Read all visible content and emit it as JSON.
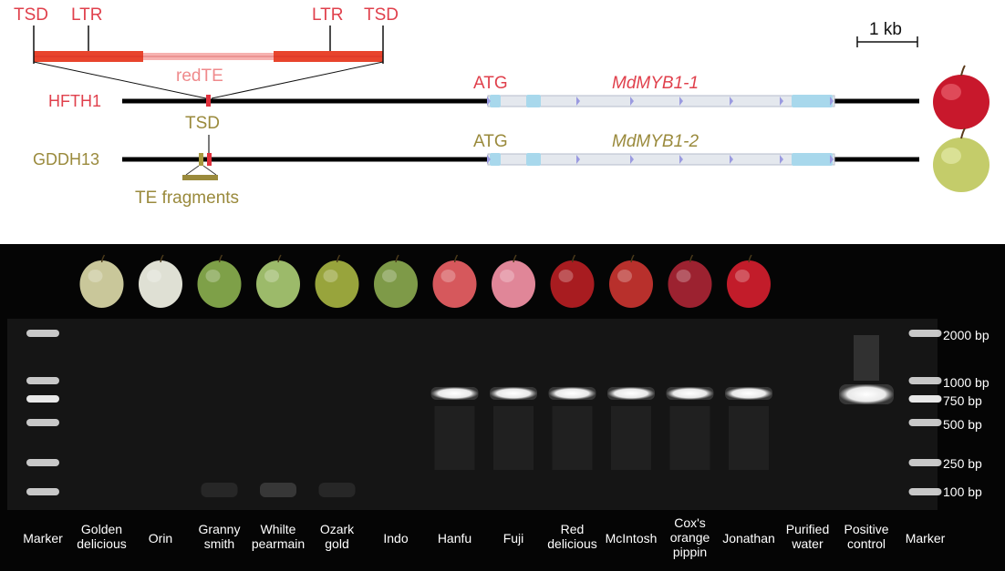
{
  "diagram": {
    "tsd_left": "TSD",
    "ltr_left": "LTR",
    "ltr_right": "LTR",
    "tsd_right": "TSD",
    "scale_label": "1 kb",
    "redte_label": "redTE",
    "hfth1": {
      "name": "HFTH1",
      "atg": "ATG",
      "gene": "MdMYB1-1"
    },
    "tsd_mid": "TSD",
    "gddh13": {
      "name": "GDDH13",
      "atg": "ATG",
      "gene": "MdMYB1-2"
    },
    "te_fragments": "TE fragments",
    "colors": {
      "red_text": "#e0404c",
      "pink_text": "#ef8a8c",
      "olive_text": "#9a8a3c",
      "exon": "#a8d8ec",
      "intron_marker": "#9a9ae0"
    }
  },
  "gel": {
    "lanes": [
      {
        "lines": [
          "Marker"
        ],
        "apple": "none",
        "band": "marker"
      },
      {
        "lines": [
          "Golden",
          "delicious"
        ],
        "apple": "#c9c79a",
        "band": "none"
      },
      {
        "lines": [
          "Orin"
        ],
        "apple": "#dfe0d4",
        "band": "none"
      },
      {
        "lines": [
          "Granny",
          "smith"
        ],
        "apple": "#7ea048",
        "band": "none"
      },
      {
        "lines": [
          "Whilte",
          "pearmain"
        ],
        "apple": "#9cba6a",
        "band": "none"
      },
      {
        "lines": [
          "Ozark",
          "gold"
        ],
        "apple": "#98a43c",
        "band": "none"
      },
      {
        "lines": [
          "Indo"
        ],
        "apple": "#7e9a48",
        "band": "none"
      },
      {
        "lines": [
          "Hanfu"
        ],
        "apple": "#d6585c",
        "band": "present"
      },
      {
        "lines": [
          "Fuji"
        ],
        "apple": "#e08698",
        "band": "present"
      },
      {
        "lines": [
          "Red",
          "delicious"
        ],
        "apple": "#a81c20",
        "band": "present"
      },
      {
        "lines": [
          "McIntosh"
        ],
        "apple": "#b8302c",
        "band": "present"
      },
      {
        "lines": [
          "Cox's",
          "orange",
          "pippin"
        ],
        "apple": "#9c2230",
        "band": "present"
      },
      {
        "lines": [
          "Jonathan"
        ],
        "apple": "#c21c2a",
        "band": "present"
      },
      {
        "lines": [
          "Purified",
          "water"
        ],
        "apple": "none",
        "band": "none"
      },
      {
        "lines": [
          "Positive",
          "control"
        ],
        "apple": "none",
        "band": "positive"
      },
      {
        "lines": [
          "Marker"
        ],
        "apple": "none",
        "band": "marker"
      }
    ],
    "ladder": [
      "2000 bp",
      "1000 bp",
      "750 bp",
      "500 bp",
      "250 bp",
      "100 bp"
    ]
  }
}
